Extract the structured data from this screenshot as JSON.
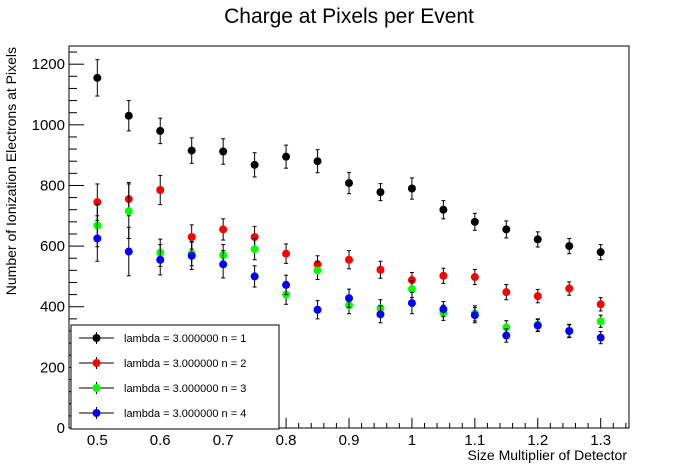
{
  "chart_data": {
    "type": "scatter",
    "title": "Charge at Pixels per Event",
    "xlabel": "Size Multiplier of Detector",
    "ylabel": "Number of Ionization Electrons at Pixels",
    "xlim": [
      0.455,
      1.345
    ],
    "ylim": [
      0,
      1260
    ],
    "xticks": [
      "0.5",
      "0.6",
      "0.7",
      "0.8",
      "0.9",
      "1",
      "1.1",
      "1.2",
      "1.3"
    ],
    "yticks": [
      "0",
      "200",
      "400",
      "600",
      "800",
      "1000",
      "1200"
    ],
    "grid": false,
    "legend_position": "bottom-left",
    "x": [
      0.5,
      0.55,
      0.6,
      0.65,
      0.7,
      0.75,
      0.8,
      0.85,
      0.9,
      0.95,
      1.0,
      1.05,
      1.1,
      1.15,
      1.2,
      1.25,
      1.3
    ],
    "series": [
      {
        "name": "lambda = 3.000000 n = 1",
        "color": "#000000",
        "values": [
          1155,
          1030,
          980,
          915,
          912,
          868,
          895,
          880,
          808,
          778,
          790,
          720,
          680,
          655,
          622,
          600,
          580
        ],
        "errors": [
          60,
          50,
          42,
          42,
          42,
          40,
          38,
          38,
          35,
          28,
          35,
          30,
          28,
          28,
          25,
          25,
          25
        ]
      },
      {
        "name": "lambda = 3.000000 n = 2",
        "color": "#ff0000",
        "values": [
          745,
          755,
          785,
          630,
          655,
          630,
          575,
          540,
          555,
          522,
          488,
          502,
          498,
          448,
          435,
          460,
          408
        ],
        "errors": [
          60,
          55,
          48,
          40,
          35,
          35,
          32,
          28,
          30,
          28,
          25,
          25,
          25,
          25,
          22,
          22,
          22
        ]
      },
      {
        "name": "lambda = 3.000000 n = 3",
        "color": "#00ff00",
        "values": [
          668,
          715,
          578,
          575,
          570,
          590,
          440,
          520,
          405,
          395,
          458,
          380,
          378,
          332,
          340,
          320,
          352
        ],
        "errors": [
          70,
          90,
          45,
          40,
          35,
          35,
          32,
          30,
          28,
          28,
          28,
          25,
          25,
          22,
          20,
          22,
          20
        ]
      },
      {
        "name": "lambda = 3.000000 n = 4",
        "color": "#0000ff",
        "values": [
          625,
          582,
          555,
          568,
          540,
          500,
          472,
          390,
          428,
          375,
          412,
          392,
          372,
          305,
          338,
          320,
          298
        ],
        "errors": [
          75,
          80,
          50,
          45,
          45,
          35,
          32,
          30,
          30,
          28,
          35,
          25,
          25,
          22,
          20,
          20,
          20
        ]
      }
    ]
  }
}
